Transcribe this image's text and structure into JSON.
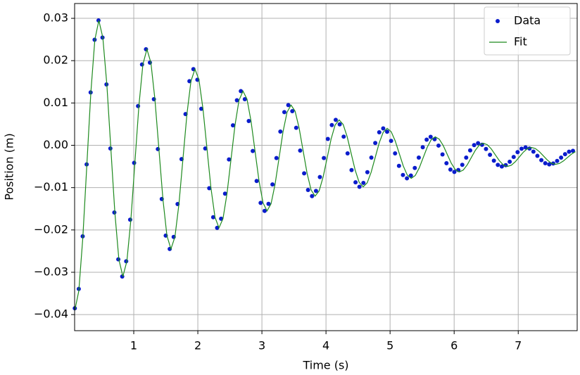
{
  "chart_data": {
    "type": "line",
    "xlabel": "Time (s)",
    "ylabel": "Position (m)",
    "xlim": [
      0.077,
      7.92
    ],
    "ylim": [
      -0.0438,
      0.0335
    ],
    "xticks": [
      1,
      2,
      3,
      4,
      5,
      6,
      7
    ],
    "yticks": [
      {
        "value": -0.04,
        "label": "−0.04"
      },
      {
        "value": -0.03,
        "label": "−0.03"
      },
      {
        "value": -0.02,
        "label": "−0.02"
      },
      {
        "value": -0.01,
        "label": "−0.01"
      },
      {
        "value": 0,
        "label": "0.00"
      },
      {
        "value": 0.01,
        "label": "0.01"
      },
      {
        "value": 0.02,
        "label": "0.02"
      },
      {
        "value": 0.03,
        "label": "0.03"
      }
    ],
    "grid": true,
    "legend": "upper right",
    "series": [
      {
        "name": "Data",
        "color": "#0a1ccc",
        "mode": "markers",
        "x": [
          0.08,
          0.142,
          0.203,
          0.265,
          0.327,
          0.389,
          0.45,
          0.512,
          0.574,
          0.635,
          0.697,
          0.759,
          0.82,
          0.882,
          0.944,
          1.006,
          1.067,
          1.129,
          1.191,
          1.252,
          1.314,
          1.376,
          1.437,
          1.499,
          1.561,
          1.623,
          1.684,
          1.746,
          1.808,
          1.869,
          1.931,
          1.993,
          2.054,
          2.116,
          2.178,
          2.24,
          2.301,
          2.363,
          2.425,
          2.486,
          2.548,
          2.61,
          2.671,
          2.733,
          2.795,
          2.857,
          2.918,
          2.98,
          3.042,
          3.103,
          3.165,
          3.227,
          3.288,
          3.35,
          3.412,
          3.474,
          3.535,
          3.597,
          3.659,
          3.72,
          3.782,
          3.844,
          3.905,
          3.967,
          4.029,
          4.091,
          4.152,
          4.214,
          4.276,
          4.337,
          4.399,
          4.461,
          4.522,
          4.584,
          4.646,
          4.708,
          4.769,
          4.831,
          4.893,
          4.954,
          5.016,
          5.078,
          5.139,
          5.201,
          5.263,
          5.325,
          5.386,
          5.448,
          5.51,
          5.571,
          5.633,
          5.695,
          5.756,
          5.818,
          5.88,
          5.942,
          6.003,
          6.065,
          6.127,
          6.188,
          6.25,
          6.312,
          6.373,
          6.435,
          6.497,
          6.559,
          6.62,
          6.682,
          6.744,
          6.805,
          6.867,
          6.929,
          6.99,
          7.052,
          7.114,
          7.176,
          7.237,
          7.299,
          7.361,
          7.422,
          7.484,
          7.546,
          7.607,
          7.669,
          7.731,
          7.793,
          7.854
        ],
        "values": [
          -0.0385,
          -0.03394,
          -0.0215,
          -0.0045,
          0.0125,
          0.02494,
          0.0295,
          0.02545,
          0.01438,
          -0.00075,
          -0.01588,
          -0.02695,
          -0.031,
          -0.0274,
          -0.01758,
          -0.00415,
          0.00928,
          0.0191,
          0.0227,
          0.01954,
          0.0109,
          -0.0009,
          -0.0127,
          -0.02134,
          -0.0245,
          -0.02165,
          -0.01388,
          -0.00325,
          0.00738,
          0.01515,
          0.018,
          0.01549,
          0.00863,
          -0.00075,
          -0.01013,
          -0.01699,
          -0.0195,
          -0.01734,
          -0.01143,
          -0.00335,
          0.00473,
          0.01064,
          0.0128,
          0.0109,
          0.00573,
          -0.00135,
          -0.00843,
          -0.0136,
          -0.0155,
          -0.01383,
          -0.00925,
          -0.003,
          0.00325,
          0.00783,
          0.0095,
          0.00806,
          0.00413,
          -0.00125,
          -0.00663,
          -0.01056,
          -0.012,
          -0.01079,
          -0.0075,
          -0.003,
          0.0015,
          0.00479,
          0.006,
          0.00494,
          0.00205,
          -0.0019,
          -0.00585,
          -0.00874,
          -0.0098,
          -0.00888,
          -0.00635,
          -0.0029,
          0.00055,
          0.00308,
          0.004,
          0.00321,
          0.00105,
          -0.0019,
          -0.00485,
          -0.00701,
          -0.0078,
          -0.00714,
          -0.00535,
          -0.0029,
          -0.00045,
          0.00134,
          0.002,
          0.00144,
          -7e-05,
          -0.00215,
          -0.00423,
          -0.00574,
          -0.0063,
          -0.00584,
          -0.0046,
          -0.0029,
          -0.0012,
          4e-05,
          0.0005,
          0.00013,
          -0.00087,
          -0.00225,
          -0.00363,
          -0.00463,
          -0.005,
          -0.0047,
          -0.00388,
          -0.00275,
          -0.00162,
          -0.0008,
          -0.0005,
          -0.00077,
          -0.0015,
          -0.0025,
          -0.0035,
          -0.00423,
          -0.0045,
          -0.00429,
          -0.0037,
          -0.0029,
          -0.0021,
          -0.00151,
          -0.0013
        ]
      },
      {
        "name": "Fit",
        "color": "#1e8a1e",
        "mode": "line",
        "x": [
          0.08,
          0.1425,
          0.205,
          0.2675,
          0.33,
          0.3925,
          0.455,
          0.5175,
          0.58,
          0.6425,
          0.705,
          0.7675,
          0.83,
          0.8925,
          0.955,
          1.0175,
          1.08,
          1.1425,
          1.205,
          1.2675,
          1.33,
          1.3925,
          1.455,
          1.5175,
          1.58,
          1.6425,
          1.705,
          1.7675,
          1.83,
          1.8925,
          1.955,
          2.0175,
          2.08,
          2.1425,
          2.205,
          2.2675,
          2.33,
          2.3925,
          2.455,
          2.5175,
          2.58,
          2.6425,
          2.705,
          2.7675,
          2.83,
          2.8925,
          2.955,
          3.0175,
          3.08,
          3.1425,
          3.205,
          3.2675,
          3.33,
          3.3925,
          3.455,
          3.5175,
          3.58,
          3.6425,
          3.705,
          3.7675,
          3.83,
          3.8925,
          3.955,
          4.0175,
          4.08,
          4.1425,
          4.205,
          4.2675,
          4.33,
          4.3925,
          4.455,
          4.5175,
          4.58,
          4.6425,
          4.705,
          4.7675,
          4.83,
          4.8925,
          4.955,
          5.0175,
          5.08,
          5.1425,
          5.205,
          5.2675,
          5.33,
          5.3925,
          5.455,
          5.5175,
          5.58,
          5.6425,
          5.705,
          5.7675,
          5.83,
          5.8925,
          5.955,
          6.0175,
          6.08,
          6.1425,
          6.205,
          6.2675,
          6.33,
          6.3925,
          6.455,
          6.5175,
          6.58,
          6.6425,
          6.705,
          6.7675,
          6.83,
          6.8925,
          6.955,
          7.0175,
          7.08,
          7.1425,
          7.205,
          7.2675,
          7.33,
          7.3925,
          7.455,
          7.5175,
          7.58,
          7.6425,
          7.705,
          7.7675,
          7.83,
          7.8925
        ],
        "values": [
          -0.039,
          -0.03441,
          -0.02188,
          -0.00475,
          0.01238,
          0.02491,
          0.0295,
          0.02545,
          0.01438,
          -0.00075,
          -0.01588,
          -0.02695,
          -0.031,
          -0.0274,
          -0.01758,
          -0.00415,
          0.00928,
          0.0191,
          0.0227,
          0.01954,
          0.0109,
          -0.0009,
          -0.0127,
          -0.02134,
          -0.0245,
          -0.02165,
          -0.01388,
          -0.00325,
          0.00738,
          0.01515,
          0.018,
          0.01549,
          0.00863,
          -0.00075,
          -0.01013,
          -0.01699,
          -0.0195,
          -0.01734,
          -0.01143,
          -0.00335,
          0.00473,
          0.01064,
          0.0128,
          0.0109,
          0.00573,
          -0.00135,
          -0.00843,
          -0.0136,
          -0.0155,
          -0.01383,
          -0.00925,
          -0.003,
          0.00325,
          0.00783,
          0.0095,
          0.00806,
          0.00413,
          -0.00125,
          -0.00663,
          -0.01056,
          -0.012,
          -0.01079,
          -0.0075,
          -0.003,
          0.0015,
          0.00479,
          0.006,
          0.00494,
          0.00205,
          -0.0019,
          -0.00585,
          -0.00874,
          -0.0098,
          -0.00888,
          -0.00635,
          -0.0029,
          0.00055,
          0.00308,
          0.004,
          0.00321,
          0.00105,
          -0.0019,
          -0.00485,
          -0.00701,
          -0.0078,
          -0.00714,
          -0.00535,
          -0.0029,
          -0.00045,
          0.00134,
          0.002,
          0.00144,
          -7e-05,
          -0.00215,
          -0.00423,
          -0.00574,
          -0.0063,
          -0.00584,
          -0.0046,
          -0.0029,
          -0.0012,
          4e-05,
          0.0005,
          0.00013,
          -0.00087,
          -0.00225,
          -0.00363,
          -0.00463,
          -0.005,
          -0.0047,
          -0.00388,
          -0.00275,
          -0.00162,
          -0.0008,
          -0.0005,
          -0.00077,
          -0.0015,
          -0.0025,
          -0.0035,
          -0.00423,
          -0.0045,
          -0.00429,
          -0.0037,
          -0.0029,
          -0.0021,
          -0.00151
        ]
      }
    ]
  }
}
